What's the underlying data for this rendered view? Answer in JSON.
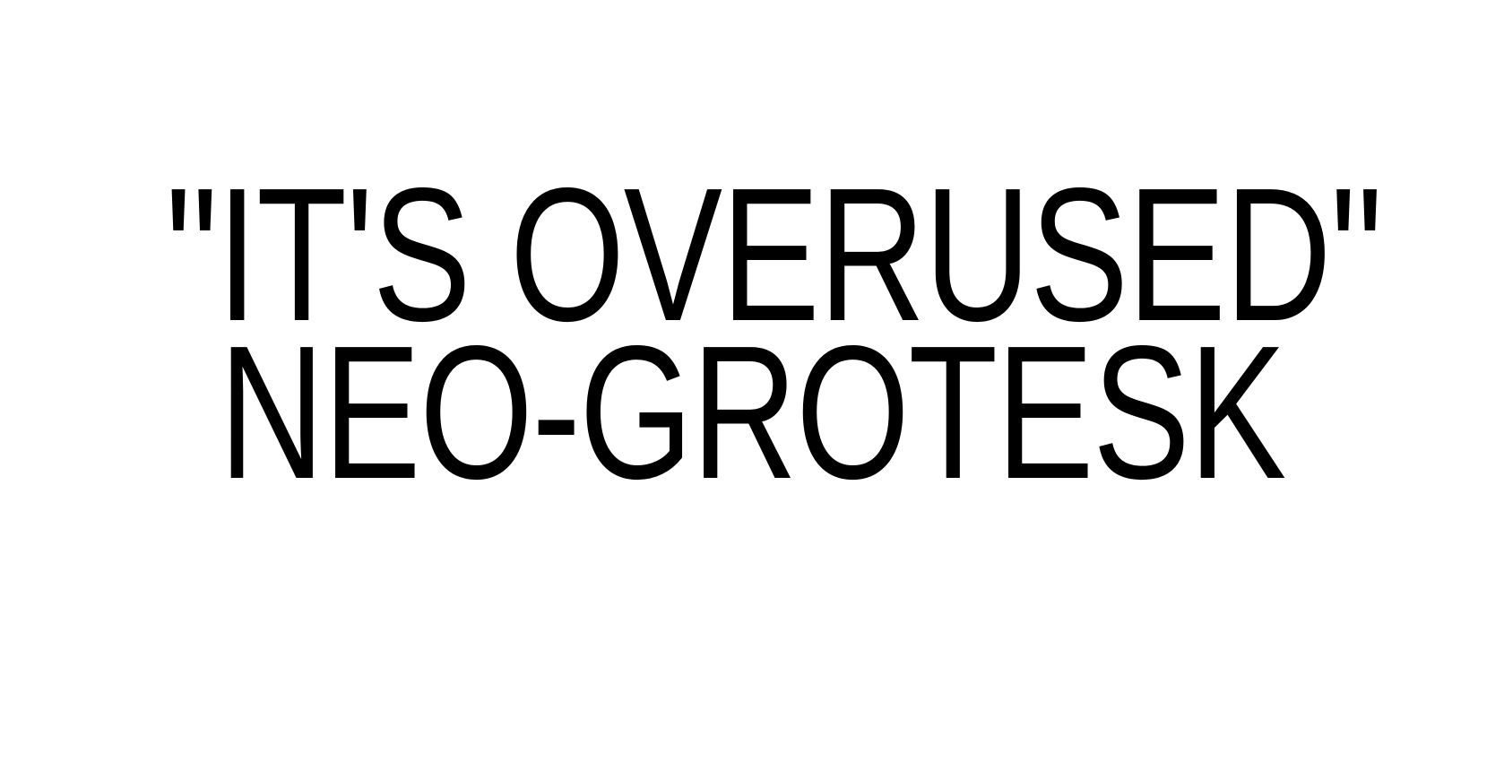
{
  "headline": {
    "line1": "\"IT'S OVERUSED\"",
    "line2": "NEO-GROTESK"
  },
  "colors": {
    "background": "#ffffff",
    "text": "#000000"
  }
}
